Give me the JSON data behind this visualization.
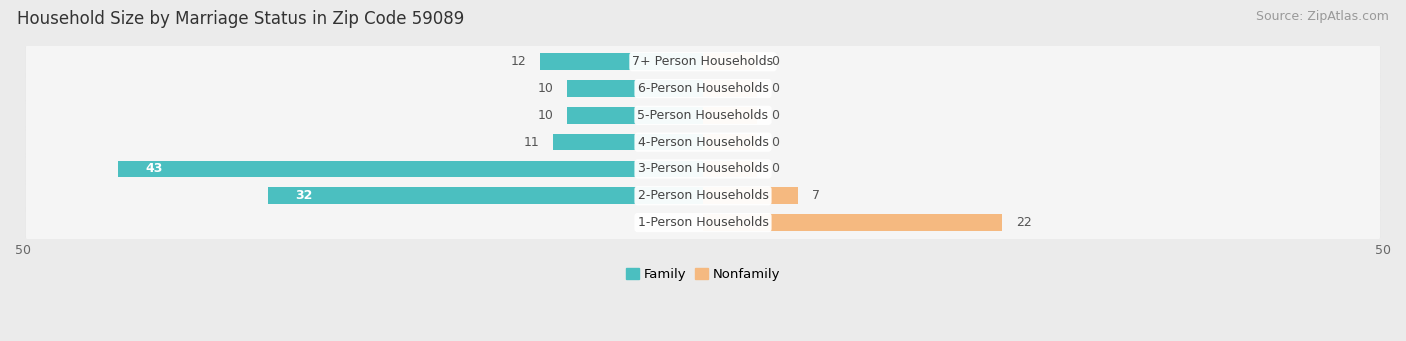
{
  "title": "Household Size by Marriage Status in Zip Code 59089",
  "source": "Source: ZipAtlas.com",
  "categories": [
    "7+ Person Households",
    "6-Person Households",
    "5-Person Households",
    "4-Person Households",
    "3-Person Households",
    "2-Person Households",
    "1-Person Households"
  ],
  "family": [
    12,
    10,
    10,
    11,
    43,
    32,
    0
  ],
  "nonfamily": [
    0,
    0,
    0,
    0,
    0,
    7,
    22
  ],
  "family_color": "#4bbfc0",
  "nonfamily_color": "#f5b980",
  "nonfamily_stub": 4,
  "xlim": [
    -50,
    50
  ],
  "bg_color": "#ebebeb",
  "row_bg_color": "#f5f5f5",
  "row_shadow_color": "#d8d8d8",
  "title_fontsize": 12,
  "source_fontsize": 9,
  "label_fontsize": 9,
  "value_fontsize": 9,
  "bar_height": 0.62,
  "legend_label_family": "Family",
  "legend_label_nonfamily": "Nonfamily"
}
